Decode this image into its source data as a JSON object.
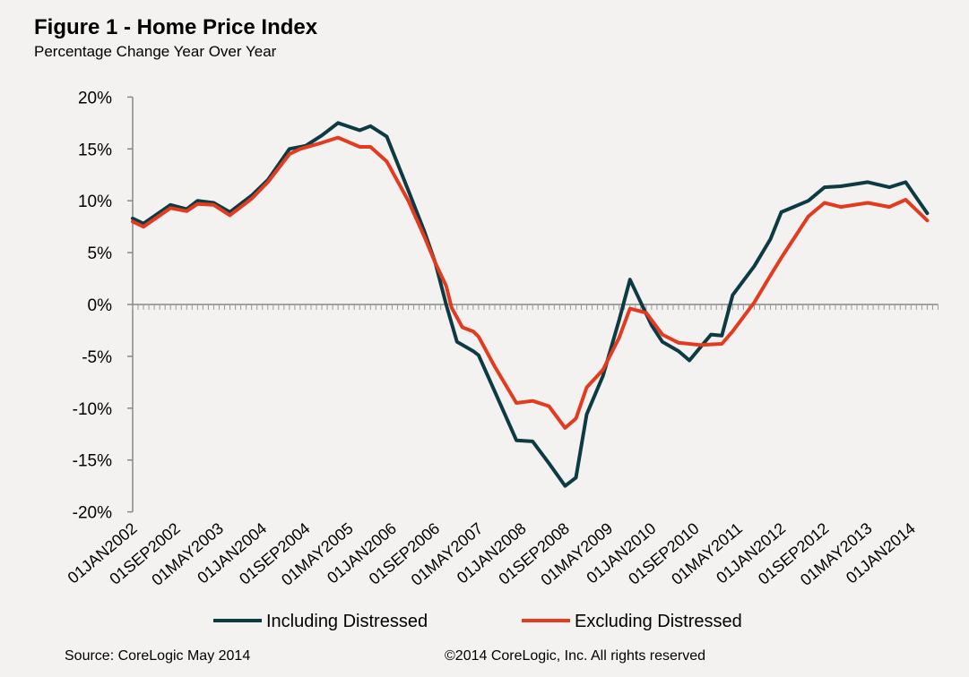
{
  "chart_data": {
    "type": "line",
    "title": "Figure 1 - Home Price Index",
    "subtitle": "Percentage Change Year Over Year",
    "xlabel": "",
    "ylabel": "",
    "ylim": [
      -20,
      20
    ],
    "xlim": [
      "2002-01",
      "2014-04"
    ],
    "yticks": [
      "20%",
      "15%",
      "10%",
      "5%",
      "0%",
      "-5%",
      "-10%",
      "-15%",
      "-20%"
    ],
    "ytick_values": [
      20,
      15,
      10,
      5,
      0,
      -5,
      -10,
      -15,
      -20
    ],
    "xticks": [
      "01JAN2002",
      "01SEP2002",
      "01MAY2003",
      "01JAN2004",
      "01SEP2004",
      "01MAY2005",
      "01JAN2006",
      "01SEP2006",
      "01MAY2007",
      "01JAN2008",
      "01SEP2008",
      "01MAY2009",
      "01JAN2010",
      "01SEP2010",
      "01MAY2011",
      "01JAN2012",
      "01SEP2012",
      "01MAY2013",
      "01JAN2014"
    ],
    "xtick_dates": [
      "2002-01",
      "2002-09",
      "2003-05",
      "2004-01",
      "2004-09",
      "2005-05",
      "2006-01",
      "2006-09",
      "2007-05",
      "2008-01",
      "2008-09",
      "2009-05",
      "2010-01",
      "2010-09",
      "2011-05",
      "2012-01",
      "2012-09",
      "2013-05",
      "2014-01"
    ],
    "grid": false,
    "legend_placement": "bottom",
    "series": [
      {
        "name": "Including Distressed",
        "color": "#0d3a43",
        "points": [
          [
            "2002-01",
            8.3
          ],
          [
            "2002-03",
            7.8
          ],
          [
            "2002-08",
            9.6
          ],
          [
            "2002-11",
            9.2
          ],
          [
            "2003-01",
            10.0
          ],
          [
            "2003-04",
            9.8
          ],
          [
            "2003-07",
            8.9
          ],
          [
            "2003-11",
            10.5
          ],
          [
            "2004-02",
            12.0
          ],
          [
            "2004-06",
            15.0
          ],
          [
            "2004-09",
            15.3
          ],
          [
            "2004-12",
            16.3
          ],
          [
            "2005-03",
            17.5
          ],
          [
            "2005-07",
            16.8
          ],
          [
            "2005-09",
            17.2
          ],
          [
            "2005-12",
            16.2
          ],
          [
            "2006-04",
            11.0
          ],
          [
            "2006-07",
            7.0
          ],
          [
            "2006-09",
            4.0
          ],
          [
            "2006-10",
            2.0
          ],
          [
            "2006-11",
            0.0
          ],
          [
            "2007-01",
            -3.6
          ],
          [
            "2007-04",
            -4.5
          ],
          [
            "2007-05",
            -4.9
          ],
          [
            "2007-08",
            -8.4
          ],
          [
            "2007-12",
            -13.1
          ],
          [
            "2008-03",
            -13.2
          ],
          [
            "2008-06",
            -15.3
          ],
          [
            "2008-09",
            -17.5
          ],
          [
            "2008-11",
            -16.7
          ],
          [
            "2009-01",
            -10.6
          ],
          [
            "2009-04",
            -6.9
          ],
          [
            "2009-07",
            -1.5
          ],
          [
            "2009-09",
            2.4
          ],
          [
            "2010-01",
            -2.0
          ],
          [
            "2010-03",
            -3.6
          ],
          [
            "2010-06",
            -4.5
          ],
          [
            "2010-08",
            -5.4
          ],
          [
            "2010-12",
            -2.9
          ],
          [
            "2011-02",
            -3.0
          ],
          [
            "2011-04",
            0.9
          ],
          [
            "2011-08",
            3.7
          ],
          [
            "2011-11",
            6.3
          ],
          [
            "2012-01",
            8.9
          ],
          [
            "2012-06",
            10.0
          ],
          [
            "2012-09",
            11.3
          ],
          [
            "2012-12",
            11.4
          ],
          [
            "2013-05",
            11.8
          ],
          [
            "2013-09",
            11.3
          ],
          [
            "2013-12",
            11.8
          ],
          [
            "2014-04",
            8.8
          ]
        ]
      },
      {
        "name": "Excluding Distressed",
        "color": "#e23b1f",
        "points": [
          [
            "2002-01",
            8.0
          ],
          [
            "2002-03",
            7.5
          ],
          [
            "2002-08",
            9.3
          ],
          [
            "2002-11",
            9.0
          ],
          [
            "2003-01",
            9.7
          ],
          [
            "2003-04",
            9.6
          ],
          [
            "2003-07",
            8.6
          ],
          [
            "2003-11",
            10.2
          ],
          [
            "2004-02",
            11.8
          ],
          [
            "2004-06",
            14.5
          ],
          [
            "2004-08",
            15.0
          ],
          [
            "2004-12",
            15.6
          ],
          [
            "2005-03",
            16.1
          ],
          [
            "2005-07",
            15.2
          ],
          [
            "2005-09",
            15.2
          ],
          [
            "2005-12",
            13.8
          ],
          [
            "2006-04",
            10.0
          ],
          [
            "2006-07",
            6.5
          ],
          [
            "2006-09",
            4.0
          ],
          [
            "2006-11",
            1.8
          ],
          [
            "2006-12",
            -0.3
          ],
          [
            "2007-02",
            -2.2
          ],
          [
            "2007-04",
            -2.6
          ],
          [
            "2007-05",
            -3.1
          ],
          [
            "2007-08",
            -6.0
          ],
          [
            "2007-12",
            -9.5
          ],
          [
            "2008-03",
            -9.3
          ],
          [
            "2008-06",
            -9.8
          ],
          [
            "2008-09",
            -11.9
          ],
          [
            "2008-11",
            -11.0
          ],
          [
            "2009-01",
            -8.0
          ],
          [
            "2009-04",
            -6.3
          ],
          [
            "2009-07",
            -3.2
          ],
          [
            "2009-09",
            -0.4
          ],
          [
            "2009-12",
            -0.8
          ],
          [
            "2010-03",
            -2.9
          ],
          [
            "2010-06",
            -3.7
          ],
          [
            "2010-10",
            -3.9
          ],
          [
            "2011-02",
            -3.8
          ],
          [
            "2011-04",
            -2.6
          ],
          [
            "2011-08",
            0.2
          ],
          [
            "2011-11",
            2.8
          ],
          [
            "2012-01",
            4.5
          ],
          [
            "2012-06",
            8.5
          ],
          [
            "2012-09",
            9.8
          ],
          [
            "2012-12",
            9.4
          ],
          [
            "2013-05",
            9.8
          ],
          [
            "2013-09",
            9.4
          ],
          [
            "2013-12",
            10.1
          ],
          [
            "2014-04",
            8.1
          ]
        ]
      }
    ],
    "footer": {
      "source": "Source: CoreLogic  May 2014",
      "copyright": "©2014 CoreLogic, Inc. All rights reserved"
    }
  }
}
